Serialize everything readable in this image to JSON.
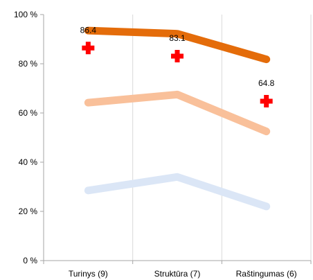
{
  "chart_data": {
    "type": "line",
    "categories": [
      "Turinys (9)",
      "Struktūra (7)",
      "Raštingumas (6)"
    ],
    "y_ticks": [
      "0 %",
      "20 %",
      "40 %",
      "60 %",
      "80 %",
      "100 %"
    ],
    "ylim": [
      0,
      100
    ],
    "grid": "vertical",
    "series": [
      {
        "values": [
          93.5,
          92.2,
          81.8
        ],
        "color": "#e46c0a",
        "style": "thick-line"
      },
      {
        "values": [
          64.2,
          67.5,
          52.5
        ],
        "color": "#f9c09a",
        "style": "thick-line"
      },
      {
        "values": [
          28.5,
          34.0,
          22.0
        ],
        "color": "#dbe6f6",
        "style": "thick-line"
      },
      {
        "values": [
          86.4,
          83.1,
          64.8
        ],
        "color": "#ff0000",
        "style": "cross-marker",
        "labels": [
          "86.4",
          "83.1",
          "64.8"
        ]
      }
    ]
  }
}
